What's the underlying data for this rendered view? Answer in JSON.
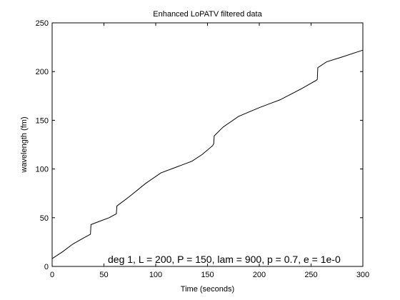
{
  "chart_data": {
    "type": "line",
    "title": "Enhanced LoPATV filtered data",
    "xlabel": "Time (seconds)",
    "ylabel": "wavelength (fm)",
    "xlim": [
      0,
      300
    ],
    "ylim": [
      0,
      250
    ],
    "xticks": [
      0,
      50,
      100,
      150,
      200,
      250,
      300
    ],
    "yticks": [
      0,
      50,
      100,
      150,
      200,
      250
    ],
    "grid": false,
    "annotation": "deg 1, L = 200, P = 150, lam = 900, p = 0.7, e = 1e-0",
    "line_color": "#000000",
    "series": [
      {
        "x": [
          0,
          10,
          20,
          30,
          37,
          37.5,
          45,
          55,
          62,
          62.5,
          75,
          90,
          105,
          120,
          135,
          145,
          155,
          156,
          156.5,
          165,
          180,
          200,
          220,
          240,
          255,
          256,
          256.5,
          265,
          280,
          300
        ],
        "y": [
          8,
          15,
          23,
          29,
          33,
          43,
          46,
          50,
          54,
          62,
          72,
          85,
          96,
          102,
          108,
          115,
          124,
          126,
          134,
          143,
          154,
          163,
          171,
          182,
          191,
          192,
          204,
          210,
          215,
          222
        ]
      }
    ]
  }
}
